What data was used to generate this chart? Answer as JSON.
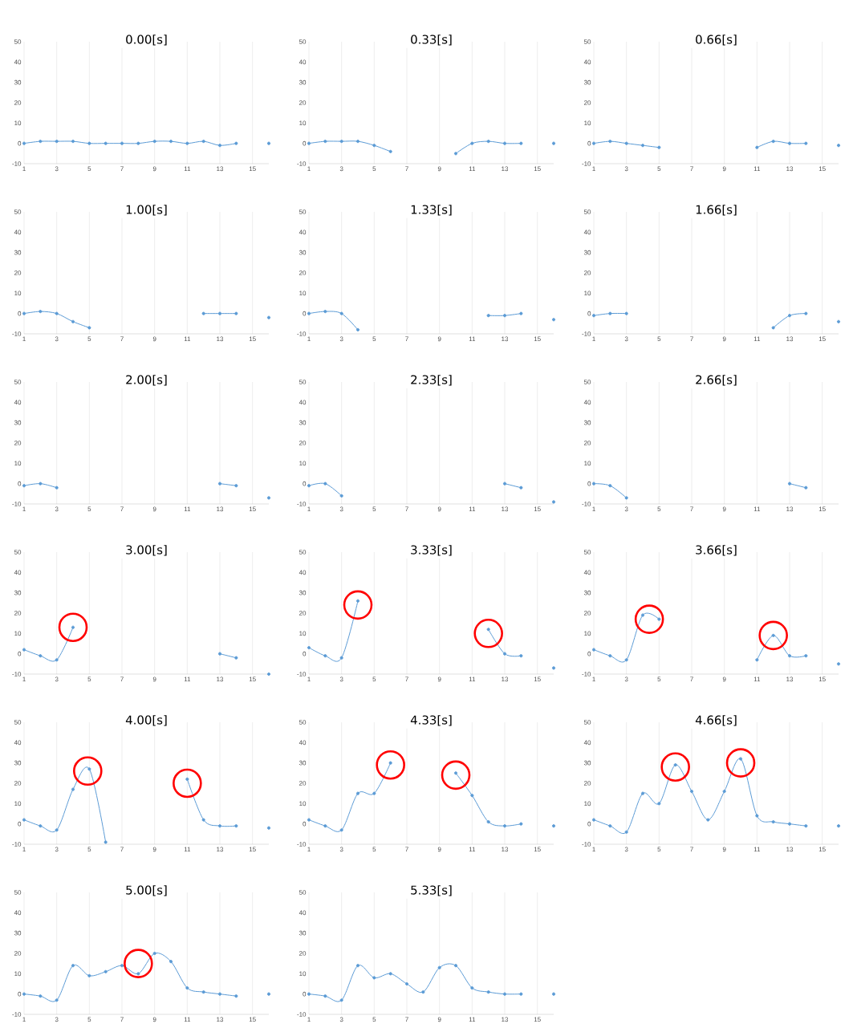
{
  "chart_data": [
    {
      "type": "line",
      "title": "0.00[s]",
      "color": "#5b9bd5",
      "marker": "circle",
      "grid": "x",
      "xlim": [
        1,
        16
      ],
      "ylim": [
        -10,
        50
      ],
      "xticks": [
        1,
        3,
        5,
        7,
        9,
        11,
        13,
        15
      ],
      "yticks": [
        -10,
        0,
        10,
        20,
        30,
        40,
        50
      ],
      "x": [
        1,
        2,
        3,
        4,
        5,
        6,
        7,
        8,
        9,
        10,
        11,
        12,
        13,
        14,
        15,
        16
      ],
      "values": [
        0,
        1,
        1,
        1,
        0,
        0,
        0,
        0,
        1,
        1,
        0,
        1,
        -1,
        0,
        null,
        0
      ]
    },
    {
      "type": "line",
      "title": "0.33[s]",
      "color": "#5b9bd5",
      "marker": "circle",
      "grid": "x",
      "xlim": [
        1,
        16
      ],
      "ylim": [
        -10,
        50
      ],
      "xticks": [
        1,
        3,
        5,
        7,
        9,
        11,
        13,
        15
      ],
      "yticks": [
        -10,
        0,
        10,
        20,
        30,
        40,
        50
      ],
      "x": [
        1,
        2,
        3,
        4,
        5,
        6,
        7,
        8,
        9,
        10,
        11,
        12,
        13,
        14,
        15,
        16
      ],
      "values": [
        0,
        1,
        1,
        1,
        -1,
        -4,
        null,
        null,
        null,
        -5,
        0,
        1,
        0,
        0,
        null,
        0
      ]
    },
    {
      "type": "line",
      "title": "0.66[s]",
      "color": "#5b9bd5",
      "marker": "circle",
      "grid": "x",
      "xlim": [
        1,
        16
      ],
      "ylim": [
        -10,
        50
      ],
      "xticks": [
        1,
        3,
        5,
        7,
        9,
        11,
        13,
        15
      ],
      "yticks": [
        -10,
        0,
        10,
        20,
        30,
        40,
        50
      ],
      "x": [
        1,
        2,
        3,
        4,
        5,
        6,
        7,
        8,
        9,
        10,
        11,
        12,
        13,
        14,
        15,
        16
      ],
      "values": [
        0,
        1,
        0,
        -1,
        -2,
        null,
        null,
        null,
        null,
        null,
        -2,
        1,
        0,
        0,
        null,
        -1
      ]
    },
    {
      "type": "line",
      "title": "1.00[s]",
      "color": "#5b9bd5",
      "marker": "circle",
      "grid": "x",
      "xlim": [
        1,
        16
      ],
      "ylim": [
        -10,
        50
      ],
      "xticks": [
        1,
        3,
        5,
        7,
        9,
        11,
        13,
        15
      ],
      "yticks": [
        -10,
        0,
        10,
        20,
        30,
        40,
        50
      ],
      "x": [
        1,
        2,
        3,
        4,
        5,
        6,
        7,
        8,
        9,
        10,
        11,
        12,
        13,
        14,
        15,
        16
      ],
      "values": [
        0,
        1,
        0,
        -4,
        -7,
        null,
        null,
        null,
        null,
        null,
        null,
        0,
        0,
        0,
        null,
        -2
      ]
    },
    {
      "type": "line",
      "title": "1.33[s]",
      "color": "#5b9bd5",
      "marker": "circle",
      "grid": "x",
      "xlim": [
        1,
        16
      ],
      "ylim": [
        -10,
        50
      ],
      "xticks": [
        1,
        3,
        5,
        7,
        9,
        11,
        13,
        15
      ],
      "yticks": [
        -10,
        0,
        10,
        20,
        30,
        40,
        50
      ],
      "x": [
        1,
        2,
        3,
        4,
        5,
        6,
        7,
        8,
        9,
        10,
        11,
        12,
        13,
        14,
        15,
        16
      ],
      "values": [
        0,
        1,
        0,
        -8,
        null,
        null,
        null,
        null,
        null,
        null,
        null,
        -1,
        -1,
        0,
        null,
        -3
      ]
    },
    {
      "type": "line",
      "title": "1.66[s]",
      "color": "#5b9bd5",
      "marker": "circle",
      "grid": "x",
      "xlim": [
        1,
        16
      ],
      "ylim": [
        -10,
        50
      ],
      "xticks": [
        1,
        3,
        5,
        7,
        9,
        11,
        13,
        15
      ],
      "yticks": [
        -10,
        0,
        10,
        20,
        30,
        40,
        50
      ],
      "x": [
        1,
        2,
        3,
        4,
        5,
        6,
        7,
        8,
        9,
        10,
        11,
        12,
        13,
        14,
        15,
        16
      ],
      "values": [
        -1,
        0,
        0,
        null,
        null,
        null,
        null,
        null,
        null,
        null,
        null,
        -7,
        -1,
        0,
        null,
        -4
      ]
    },
    {
      "type": "line",
      "title": "2.00[s]",
      "color": "#5b9bd5",
      "marker": "circle",
      "grid": "x",
      "xlim": [
        1,
        16
      ],
      "ylim": [
        -10,
        50
      ],
      "xticks": [
        1,
        3,
        5,
        7,
        9,
        11,
        13,
        15
      ],
      "yticks": [
        -10,
        0,
        10,
        20,
        30,
        40,
        50
      ],
      "x": [
        1,
        2,
        3,
        4,
        5,
        6,
        7,
        8,
        9,
        10,
        11,
        12,
        13,
        14,
        15,
        16
      ],
      "values": [
        -1,
        0,
        -2,
        null,
        null,
        null,
        null,
        null,
        null,
        null,
        null,
        null,
        0,
        -1,
        null,
        -7
      ]
    },
    {
      "type": "line",
      "title": "2.33[s]",
      "color": "#5b9bd5",
      "marker": "circle",
      "grid": "x",
      "xlim": [
        1,
        16
      ],
      "ylim": [
        -10,
        50
      ],
      "xticks": [
        1,
        3,
        5,
        7,
        9,
        11,
        13,
        15
      ],
      "yticks": [
        -10,
        0,
        10,
        20,
        30,
        40,
        50
      ],
      "x": [
        1,
        2,
        3,
        4,
        5,
        6,
        7,
        8,
        9,
        10,
        11,
        12,
        13,
        14,
        15,
        16
      ],
      "values": [
        -1,
        0,
        -6,
        null,
        null,
        null,
        null,
        null,
        null,
        null,
        null,
        null,
        0,
        -2,
        null,
        -9
      ]
    },
    {
      "type": "line",
      "title": "2.66[s]",
      "color": "#5b9bd5",
      "marker": "circle",
      "grid": "x",
      "xlim": [
        1,
        16
      ],
      "ylim": [
        -10,
        50
      ],
      "xticks": [
        1,
        3,
        5,
        7,
        9,
        11,
        13,
        15
      ],
      "yticks": [
        -10,
        0,
        10,
        20,
        30,
        40,
        50
      ],
      "x": [
        1,
        2,
        3,
        4,
        5,
        6,
        7,
        8,
        9,
        10,
        11,
        12,
        13,
        14
      ],
      "values": [
        0,
        -1,
        -7,
        null,
        null,
        null,
        null,
        null,
        null,
        null,
        null,
        null,
        0,
        -2
      ]
    },
    {
      "type": "line",
      "title": "3.00[s]",
      "color": "#5b9bd5",
      "marker": "circle",
      "grid": "x",
      "xlim": [
        1,
        16
      ],
      "ylim": [
        -10,
        50
      ],
      "xticks": [
        1,
        3,
        5,
        7,
        9,
        11,
        13,
        15
      ],
      "yticks": [
        -10,
        0,
        10,
        20,
        30,
        40,
        50
      ],
      "x": [
        1,
        2,
        3,
        4,
        5,
        6,
        7,
        8,
        9,
        10,
        11,
        12,
        13,
        14,
        15,
        16
      ],
      "values": [
        2,
        -1,
        -3,
        13,
        null,
        null,
        null,
        null,
        null,
        null,
        null,
        null,
        0,
        -2,
        null,
        -10
      ]
    },
    {
      "type": "line",
      "title": "3.33[s]",
      "color": "#5b9bd5",
      "marker": "circle",
      "grid": "x",
      "xlim": [
        1,
        16
      ],
      "ylim": [
        -10,
        50
      ],
      "xticks": [
        1,
        3,
        5,
        7,
        9,
        11,
        13,
        15
      ],
      "yticks": [
        -10,
        0,
        10,
        20,
        30,
        40,
        50
      ],
      "x": [
        1,
        2,
        3,
        4,
        5,
        6,
        7,
        8,
        9,
        10,
        11,
        12,
        13,
        14,
        15,
        16
      ],
      "values": [
        3,
        -1,
        -2,
        26,
        null,
        null,
        null,
        null,
        null,
        null,
        null,
        12,
        0,
        -1,
        null,
        -7
      ]
    },
    {
      "type": "line",
      "title": "3.66[s]",
      "color": "#5b9bd5",
      "marker": "circle",
      "grid": "x",
      "xlim": [
        1,
        16
      ],
      "ylim": [
        -10,
        50
      ],
      "xticks": [
        1,
        3,
        5,
        7,
        9,
        11,
        13,
        15
      ],
      "yticks": [
        -10,
        0,
        10,
        20,
        30,
        40,
        50
      ],
      "x": [
        1,
        2,
        3,
        4,
        5,
        6,
        7,
        8,
        9,
        10,
        11,
        12,
        13,
        14,
        15,
        16
      ],
      "values": [
        2,
        -1,
        -3,
        19,
        17,
        null,
        null,
        null,
        null,
        null,
        -3,
        9,
        -1,
        -1,
        null,
        -5
      ]
    },
    {
      "type": "line",
      "title": "4.00[s]",
      "color": "#5b9bd5",
      "marker": "circle",
      "grid": "x",
      "xlim": [
        1,
        16
      ],
      "ylim": [
        -10,
        50
      ],
      "xticks": [
        1,
        3,
        5,
        7,
        9,
        11,
        13,
        15
      ],
      "yticks": [
        -10,
        0,
        10,
        20,
        30,
        40,
        50
      ],
      "x": [
        1,
        2,
        3,
        4,
        5,
        6,
        7,
        8,
        9,
        10,
        11,
        12,
        13,
        14,
        15,
        16
      ],
      "values": [
        2,
        -1,
        -3,
        17,
        27,
        -9,
        null,
        null,
        null,
        null,
        22,
        2,
        -1,
        -1,
        null,
        -2
      ]
    },
    {
      "type": "line",
      "title": "4.33[s]",
      "color": "#5b9bd5",
      "marker": "circle",
      "grid": "x",
      "xlim": [
        1,
        16
      ],
      "ylim": [
        -10,
        50
      ],
      "xticks": [
        1,
        3,
        5,
        7,
        9,
        11,
        13,
        15
      ],
      "yticks": [
        -10,
        0,
        10,
        20,
        30,
        40,
        50
      ],
      "x": [
        1,
        2,
        3,
        4,
        5,
        6,
        7,
        8,
        9,
        10,
        11,
        12,
        13,
        14,
        15,
        16
      ],
      "values": [
        2,
        -1,
        -3,
        15,
        15,
        30,
        null,
        null,
        null,
        25,
        14,
        1,
        -1,
        0,
        null,
        -1
      ]
    },
    {
      "type": "line",
      "title": "4.66[s]",
      "color": "#5b9bd5",
      "marker": "circle",
      "grid": "x",
      "xlim": [
        1,
        16
      ],
      "ylim": [
        -10,
        50
      ],
      "xticks": [
        1,
        3,
        5,
        7,
        9,
        11,
        13,
        15
      ],
      "yticks": [
        -10,
        0,
        10,
        20,
        30,
        40,
        50
      ],
      "x": [
        1,
        2,
        3,
        4,
        5,
        6,
        7,
        8,
        9,
        10,
        11,
        12,
        13,
        14,
        15,
        16
      ],
      "values": [
        2,
        -1,
        -4,
        15,
        10,
        29,
        16,
        2,
        16,
        32,
        4,
        1,
        0,
        -1,
        null,
        -1
      ]
    },
    {
      "type": "line",
      "title": "5.00[s]",
      "color": "#5b9bd5",
      "marker": "circle",
      "grid": "x",
      "xlim": [
        1,
        16
      ],
      "ylim": [
        -10,
        50
      ],
      "xticks": [
        1,
        3,
        5,
        7,
        9,
        11,
        13,
        15
      ],
      "yticks": [
        -10,
        0,
        10,
        20,
        30,
        40,
        50
      ],
      "x": [
        1,
        2,
        3,
        4,
        5,
        6,
        7,
        8,
        9,
        10,
        11,
        12,
        13,
        14,
        15,
        16
      ],
      "values": [
        0,
        -1,
        -3,
        14,
        9,
        11,
        14,
        10,
        20,
        16,
        3,
        1,
        0,
        -1,
        null,
        0
      ]
    },
    {
      "type": "line",
      "title": "5.33[s]",
      "color": "#5b9bd5",
      "marker": "circle",
      "grid": "x",
      "xlim": [
        1,
        16
      ],
      "ylim": [
        -10,
        50
      ],
      "xticks": [
        1,
        3,
        5,
        7,
        9,
        11,
        13,
        15
      ],
      "yticks": [
        -10,
        0,
        10,
        20,
        30,
        40,
        50
      ],
      "x": [
        1,
        2,
        3,
        4,
        5,
        6,
        7,
        8,
        9,
        10,
        11,
        12,
        13,
        14,
        15,
        16
      ],
      "values": [
        0,
        -1,
        -3,
        14,
        8,
        10,
        5,
        1,
        13,
        14,
        3,
        1,
        0,
        0,
        null,
        0
      ]
    }
  ]
}
